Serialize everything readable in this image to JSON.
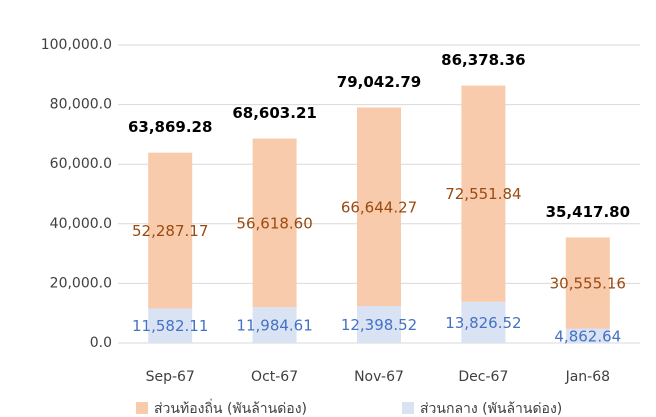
{
  "chart_data": {
    "type": "bar",
    "stacked": true,
    "categories": [
      "Sep-67",
      "Oct-67",
      "Nov-67",
      "Dec-67",
      "Jan-68"
    ],
    "series": [
      {
        "name": "ส่วนท้องถิ่น (พันล้านด่อง)",
        "color": "#f8cbad",
        "label_color": "#9c4a0f",
        "values": [
          52287.17,
          56618.6,
          66644.27,
          72551.84,
          30555.16
        ],
        "value_labels": [
          "52,287.17",
          "56,618.60",
          "66,644.27",
          "72,551.84",
          "30,555.16"
        ]
      },
      {
        "name": "ส่วนกลาง (พันล้านด่อง)",
        "color": "#dae3f3",
        "label_color": "#4472c4",
        "values": [
          11582.11,
          11984.61,
          12398.52,
          13826.52,
          4862.64
        ],
        "value_labels": [
          "11,582.11",
          "11,984.61",
          "12,398.52",
          "13,826.52",
          "4,862.64"
        ]
      }
    ],
    "totals": {
      "values": [
        63869.28,
        68603.21,
        79042.79,
        86378.36,
        35417.8
      ],
      "value_labels": [
        "63,869.28",
        "68,603.21",
        "79,042.79",
        "86,378.36",
        "35,417.80"
      ]
    },
    "ylim": [
      0,
      100000
    ],
    "yticks": [
      {
        "value": 0,
        "label": "0.0"
      },
      {
        "value": 20000,
        "label": "20,000.0"
      },
      {
        "value": 40000,
        "label": "40,000.0"
      },
      {
        "value": 60000,
        "label": "60,000.0"
      },
      {
        "value": 80000,
        "label": "80,000.0"
      },
      {
        "value": 100000,
        "label": "100,000.0"
      }
    ],
    "grid": true,
    "legend": "bottom"
  }
}
